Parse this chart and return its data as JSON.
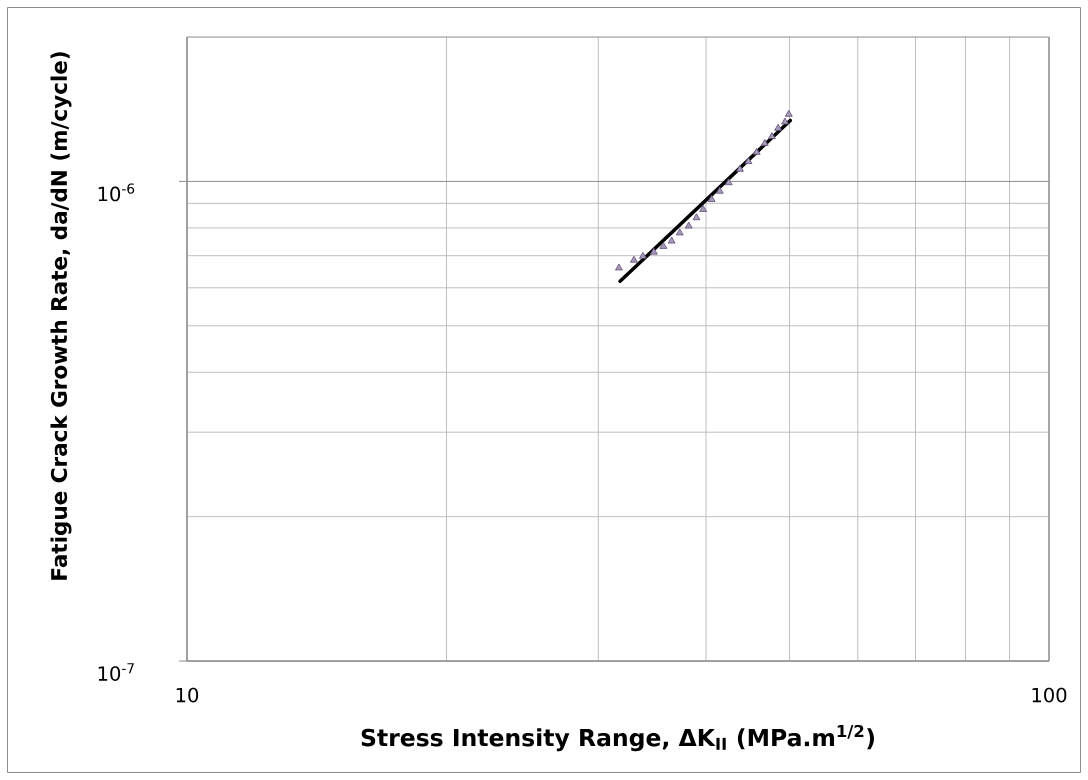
{
  "chart_data": {
    "type": "scatter",
    "xlabel": "Stress Intensity Range, ΔK$_{II}$ (MPa.m$^{1/2}$)",
    "ylabel": "Fatigue Crack Growth Rate, da/dN (m/cycle)",
    "log": "xy",
    "xlim": [
      10,
      100
    ],
    "ylim": [
      1e-07,
      2e-06
    ],
    "xticks": [
      10,
      100
    ],
    "yticks": [
      {
        "value": 1e-07,
        "label": "10$^{-7}$"
      },
      {
        "value": 1e-06,
        "label": "10$^{-6}$"
      }
    ],
    "grid": true,
    "series": [
      {
        "color": "#604a7b",
        "marker": "triangle",
        "x": [
          31.7,
          33.0,
          33.8,
          34.8,
          35.7,
          36.5,
          37.3,
          38.2,
          39.0,
          39.7,
          40.6,
          41.5,
          42.5,
          43.8,
          44.8,
          45.8,
          46.8,
          47.7,
          48.5,
          49.4,
          49.9
        ],
        "values": [
          6.6e-07,
          6.85e-07,
          6.98e-07,
          7.12e-07,
          7.32e-07,
          7.51e-07,
          7.81e-07,
          8.07e-07,
          8.4e-07,
          8.74e-07,
          9.17e-07,
          9.54e-07,
          9.94e-07,
          1.06e-06,
          1.1e-06,
          1.15e-06,
          1.2e-06,
          1.24e-06,
          1.29e-06,
          1.33e-06,
          1.38e-06
        ]
      },
      {
        "type": "line",
        "color": "#000000",
        "marker": "none",
        "x": [
          31.8,
          50.1
        ],
        "values": [
          6.19e-07,
          1.34e-06
        ]
      }
    ]
  }
}
